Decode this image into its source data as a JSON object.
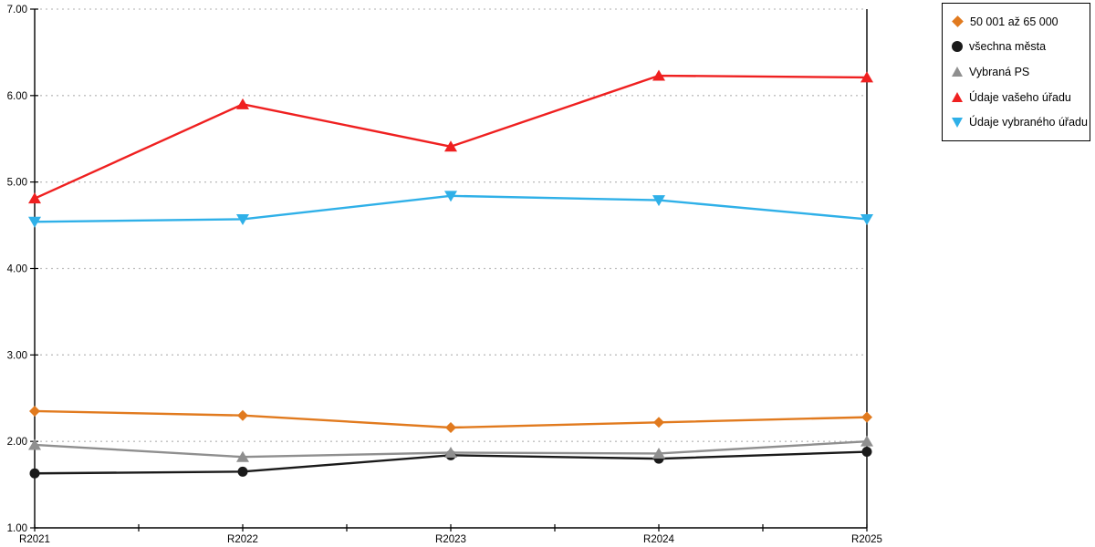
{
  "chart_data": {
    "type": "line",
    "title": "",
    "xlabel": "",
    "ylabel": "",
    "categories": [
      "R2021",
      "R2022",
      "R2023",
      "R2024",
      "R2025"
    ],
    "series": [
      {
        "name": "50 001 až 65 000",
        "color": "#E17A1E",
        "marker": "diamond",
        "values": [
          2.35,
          2.3,
          2.16,
          2.22,
          2.28
        ]
      },
      {
        "name": "všechna města",
        "color": "#1A1A1A",
        "marker": "circle",
        "values": [
          1.63,
          1.65,
          1.84,
          1.8,
          1.88
        ]
      },
      {
        "name": "Vybraná PS",
        "color": "#8F8F8F",
        "marker": "triangle-up",
        "values": [
          1.96,
          1.82,
          1.87,
          1.86,
          2.0
        ]
      },
      {
        "name": "Údaje vašeho úřadu",
        "color": "#EF2020",
        "marker": "triangle-up",
        "values": [
          4.81,
          5.9,
          5.41,
          6.23,
          6.21
        ]
      },
      {
        "name": "Údaje vybraného úřadu",
        "color": "#2FB0E8",
        "marker": "triangle-down",
        "values": [
          4.54,
          4.57,
          4.84,
          4.79,
          4.57
        ]
      }
    ],
    "ylim": [
      1,
      7
    ],
    "y_tick_labels": [
      "1.00",
      "2.00",
      "3.00",
      "4.00",
      "5.00",
      "6.00",
      "7.00"
    ],
    "grid": "horizontal-dotted",
    "gridline_color": "#BFBFBF",
    "axis_color": "#000000",
    "legend_position": "outside-top-right"
  }
}
